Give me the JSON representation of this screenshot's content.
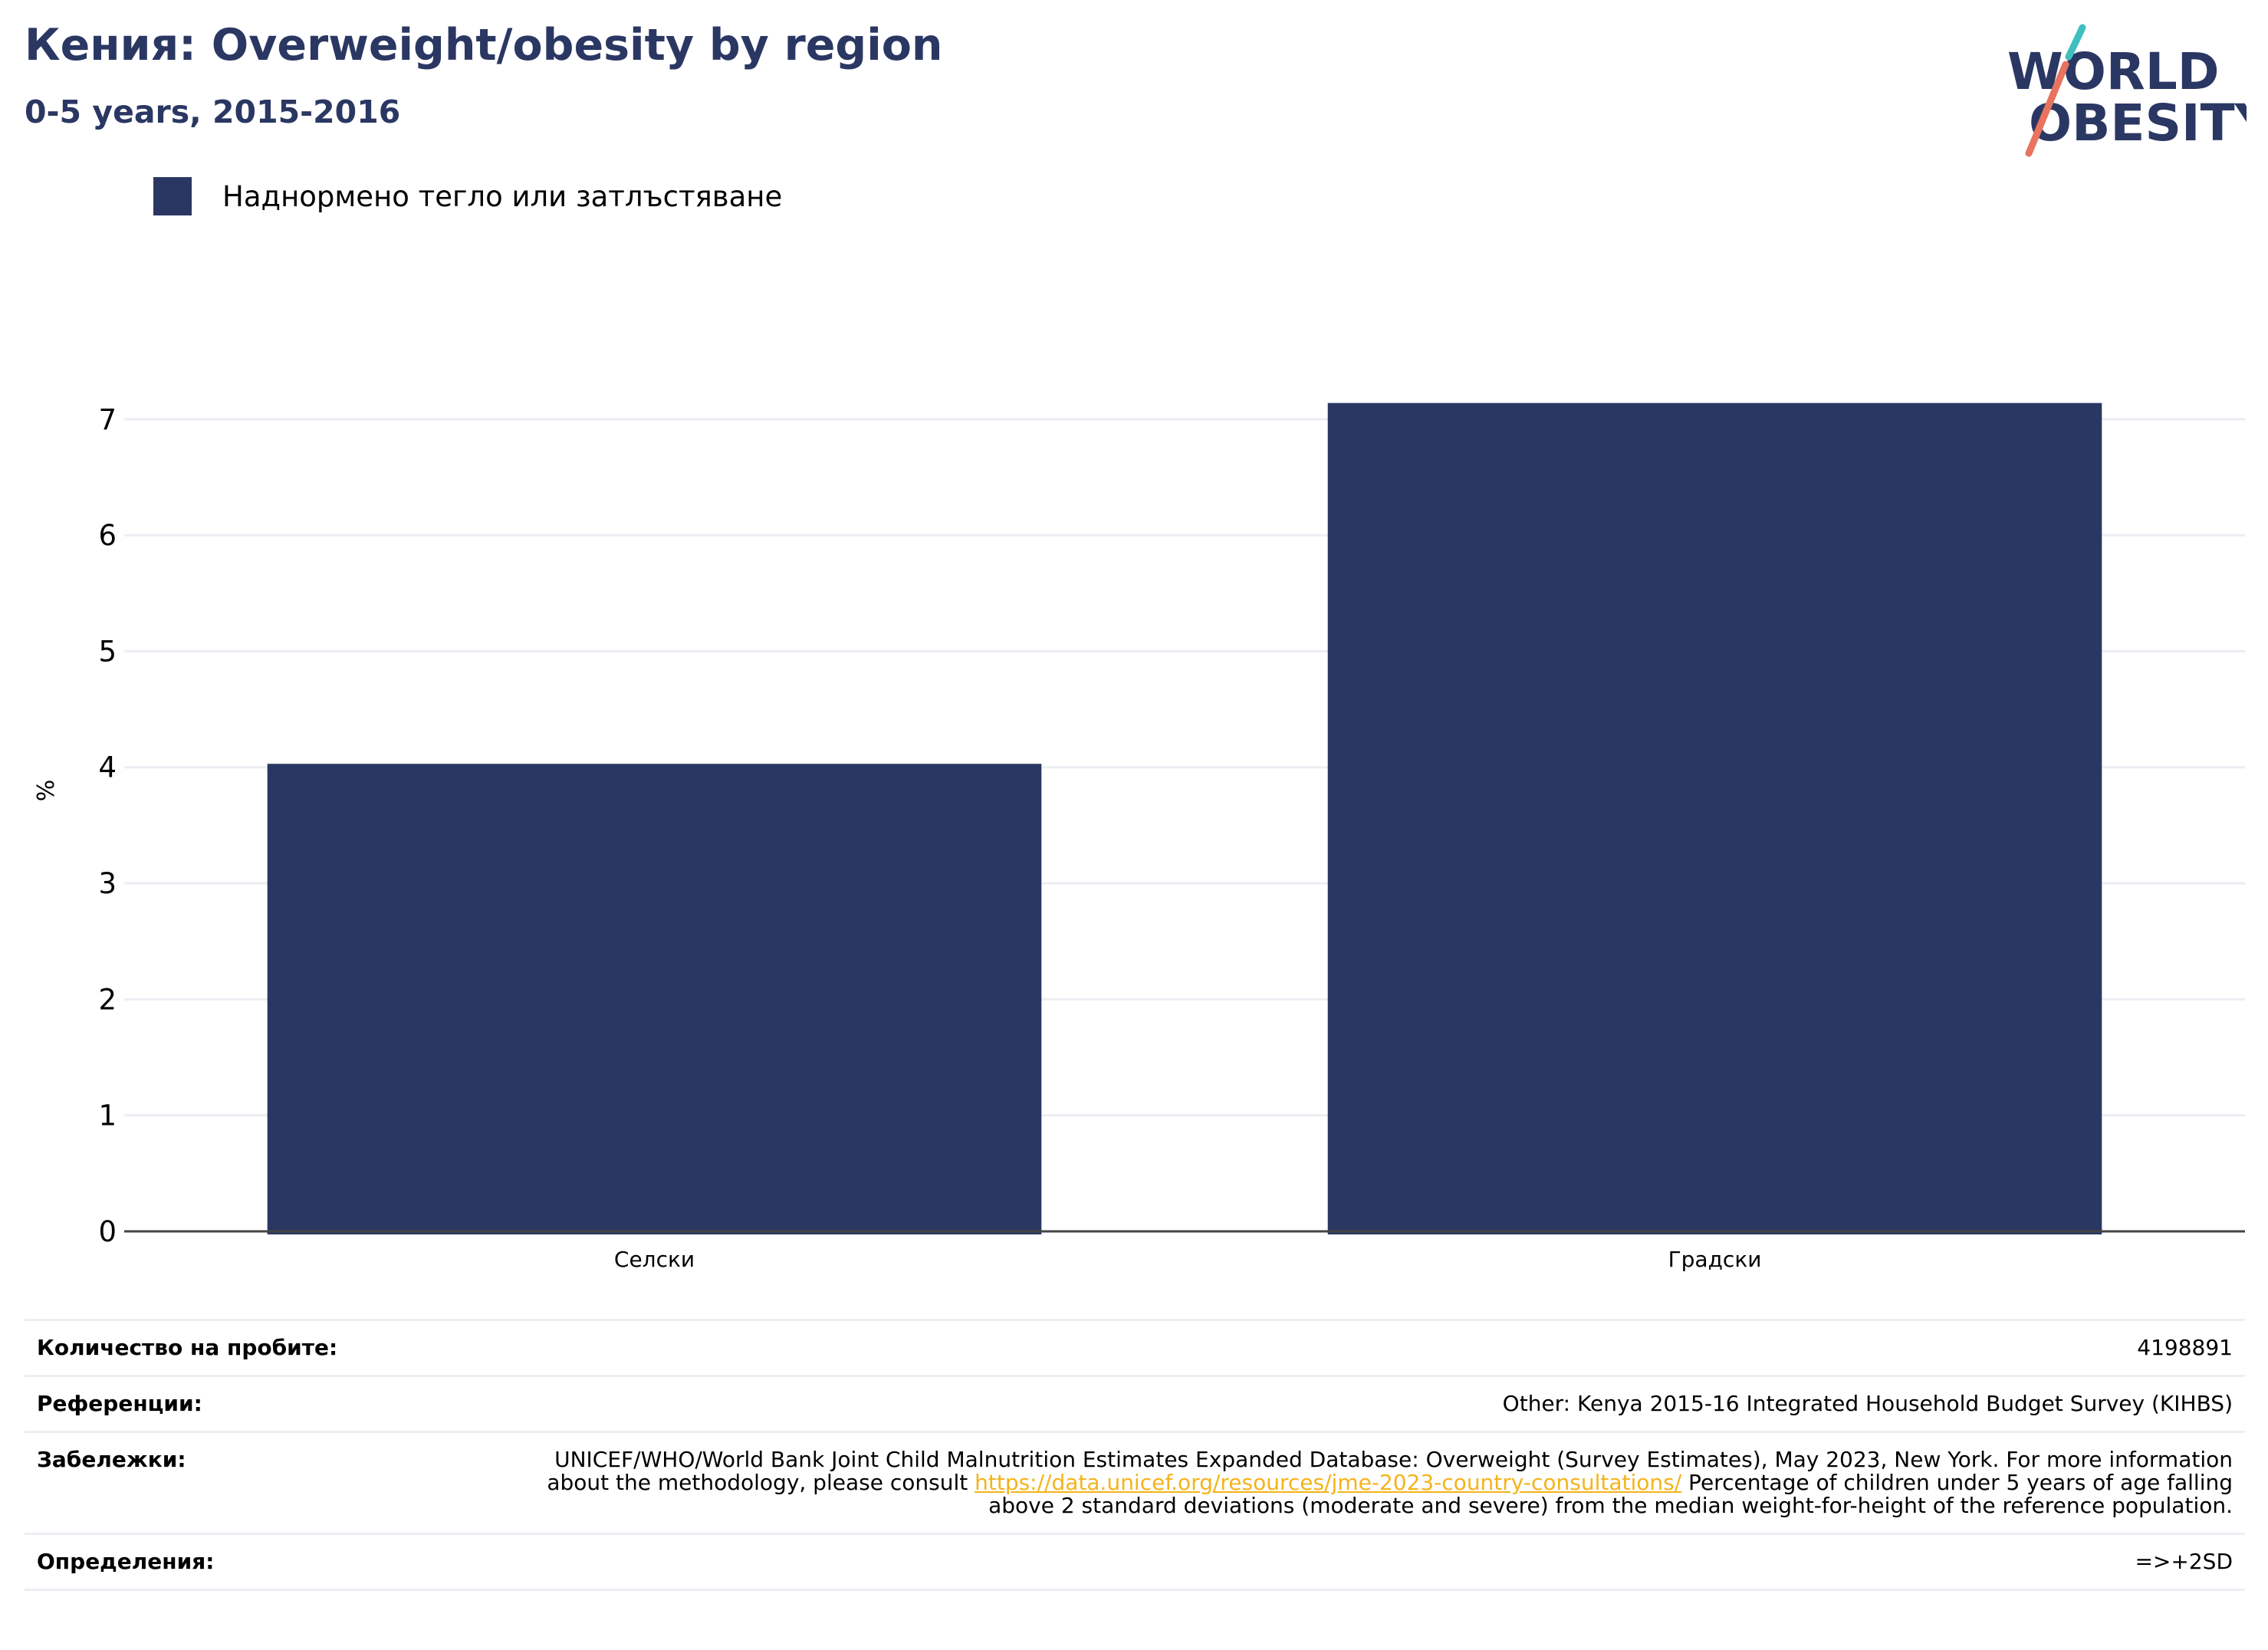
{
  "header": {
    "title": "Кения: Overweight/obesity by region",
    "subtitle": "0-5 years, 2015-2016",
    "logo_text": "WORLD OBESITY"
  },
  "colors": {
    "title": "#2b3763",
    "bar": "#2b3763",
    "grid": "#eceef3",
    "link": "#f4b41a",
    "logo_teal": "#3fbfbf",
    "logo_coral": "#e8735f"
  },
  "chart_data": {
    "type": "bar",
    "categories": [
      "Селски",
      "Градски"
    ],
    "series": [
      {
        "name": "Наднормено тегло или затлъстяване",
        "values": [
          4.03,
          7.14
        ]
      }
    ],
    "ylabel": "%",
    "xlabel": "",
    "ylim": [
      0,
      7.6
    ],
    "yticks": [
      0,
      1,
      2,
      3,
      4,
      5,
      6,
      7
    ],
    "grid": true,
    "legend_position": "top-left"
  },
  "info": {
    "sample_label": "Количество на пробите:",
    "sample_value": "4198891",
    "references_label": "Референции:",
    "references_value": "Other: Kenya 2015-16 Integrated Household Budget Survey (KIHBS)",
    "notes_label": "Забележки:",
    "notes_before": "UNICEF/WHO/World Bank Joint Child Malnutrition Estimates Expanded Database: Overweight (Survey Estimates), May 2023, New York. For more information about the methodology, please consult ",
    "notes_link": "https://data.unicef.org/resources/jme-2023-country-consultations/",
    "notes_after": " Percentage of children under 5 years of age falling above 2 standard deviations (moderate and severe) from the median weight-for-height of the reference population.",
    "definitions_label": "Определения:",
    "definitions_value": "=>+2SD"
  }
}
